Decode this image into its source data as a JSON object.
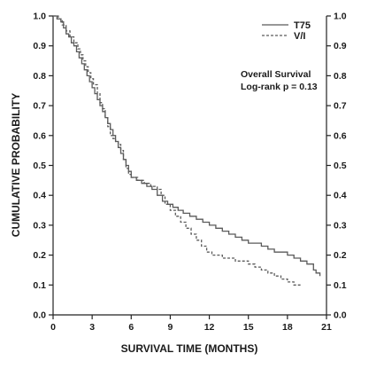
{
  "chart_data": {
    "type": "line",
    "step": true,
    "xlabel": "SURVIVAL TIME (MONTHS)",
    "ylabel": "CUMULATIVE PROBABILITY",
    "xlim": [
      0,
      21
    ],
    "ylim": [
      0,
      1.0
    ],
    "xticks": [
      0,
      3,
      6,
      9,
      12,
      15,
      18,
      21
    ],
    "yticks": [
      "0.0",
      "0.1",
      "0.2",
      "0.3",
      "0.4",
      "0.5",
      "0.6",
      "0.7",
      "0.8",
      "0.9",
      "1.0"
    ],
    "legend_position": "top-right",
    "annotations": [
      "Overall Survival",
      "Log-rank p = 0.13"
    ],
    "series": [
      {
        "name": "T75",
        "style": "solid",
        "color": "#5a5a5a",
        "points": [
          [
            0,
            1.0
          ],
          [
            0.3,
            0.99
          ],
          [
            0.6,
            0.98
          ],
          [
            0.8,
            0.96
          ],
          [
            1.0,
            0.94
          ],
          [
            1.2,
            0.93
          ],
          [
            1.4,
            0.91
          ],
          [
            1.6,
            0.9
          ],
          [
            1.8,
            0.88
          ],
          [
            2.0,
            0.86
          ],
          [
            2.2,
            0.84
          ],
          [
            2.4,
            0.82
          ],
          [
            2.6,
            0.8
          ],
          [
            2.8,
            0.78
          ],
          [
            3.0,
            0.76
          ],
          [
            3.2,
            0.74
          ],
          [
            3.4,
            0.72
          ],
          [
            3.6,
            0.7
          ],
          [
            3.8,
            0.68
          ],
          [
            4.0,
            0.66
          ],
          [
            4.2,
            0.64
          ],
          [
            4.4,
            0.62
          ],
          [
            4.6,
            0.6
          ],
          [
            4.8,
            0.58
          ],
          [
            5.0,
            0.56
          ],
          [
            5.2,
            0.54
          ],
          [
            5.4,
            0.52
          ],
          [
            5.6,
            0.5
          ],
          [
            5.8,
            0.48
          ],
          [
            6.0,
            0.46
          ],
          [
            6.4,
            0.45
          ],
          [
            6.8,
            0.44
          ],
          [
            7.2,
            0.43
          ],
          [
            7.6,
            0.42
          ],
          [
            8.0,
            0.4
          ],
          [
            8.4,
            0.38
          ],
          [
            8.8,
            0.37
          ],
          [
            9.2,
            0.36
          ],
          [
            9.6,
            0.35
          ],
          [
            10.0,
            0.34
          ],
          [
            10.5,
            0.33
          ],
          [
            11.0,
            0.32
          ],
          [
            11.5,
            0.31
          ],
          [
            12.0,
            0.3
          ],
          [
            12.5,
            0.29
          ],
          [
            13.0,
            0.28
          ],
          [
            13.5,
            0.27
          ],
          [
            14.0,
            0.26
          ],
          [
            14.5,
            0.25
          ],
          [
            15.0,
            0.24
          ],
          [
            16.0,
            0.23
          ],
          [
            16.5,
            0.22
          ],
          [
            17.0,
            0.21
          ],
          [
            18.0,
            0.2
          ],
          [
            18.5,
            0.19
          ],
          [
            19.0,
            0.18
          ],
          [
            19.5,
            0.17
          ],
          [
            20.0,
            0.15
          ],
          [
            20.2,
            0.14
          ],
          [
            20.5,
            0.13
          ]
        ]
      },
      {
        "name": "V/I",
        "style": "dashed",
        "color": "#5a5a5a",
        "points": [
          [
            0,
            1.0
          ],
          [
            0.4,
            0.99
          ],
          [
            0.7,
            0.97
          ],
          [
            1.0,
            0.95
          ],
          [
            1.3,
            0.93
          ],
          [
            1.6,
            0.91
          ],
          [
            1.9,
            0.89
          ],
          [
            2.1,
            0.87
          ],
          [
            2.3,
            0.85
          ],
          [
            2.5,
            0.83
          ],
          [
            2.7,
            0.81
          ],
          [
            2.9,
            0.79
          ],
          [
            3.1,
            0.77
          ],
          [
            3.4,
            0.74
          ],
          [
            3.6,
            0.71
          ],
          [
            3.8,
            0.69
          ],
          [
            4.0,
            0.66
          ],
          [
            4.2,
            0.63
          ],
          [
            4.4,
            0.6
          ],
          [
            4.6,
            0.59
          ],
          [
            4.8,
            0.58
          ],
          [
            5.0,
            0.57
          ],
          [
            5.2,
            0.55
          ],
          [
            5.4,
            0.52
          ],
          [
            5.6,
            0.49
          ],
          [
            5.8,
            0.47
          ],
          [
            6.0,
            0.46
          ],
          [
            6.5,
            0.45
          ],
          [
            7.0,
            0.44
          ],
          [
            7.5,
            0.43
          ],
          [
            8.0,
            0.42
          ],
          [
            8.3,
            0.4
          ],
          [
            8.6,
            0.37
          ],
          [
            9.0,
            0.35
          ],
          [
            9.4,
            0.33
          ],
          [
            9.8,
            0.31
          ],
          [
            10.2,
            0.29
          ],
          [
            10.6,
            0.27
          ],
          [
            11.0,
            0.25
          ],
          [
            11.4,
            0.23
          ],
          [
            11.8,
            0.21
          ],
          [
            12.2,
            0.2
          ],
          [
            13.0,
            0.19
          ],
          [
            14.0,
            0.18
          ],
          [
            15.0,
            0.17
          ],
          [
            15.5,
            0.16
          ],
          [
            16.0,
            0.15
          ],
          [
            16.5,
            0.14
          ],
          [
            17.0,
            0.13
          ],
          [
            17.5,
            0.12
          ],
          [
            18.0,
            0.11
          ],
          [
            18.5,
            0.1
          ],
          [
            19.0,
            0.1
          ]
        ]
      }
    ]
  }
}
